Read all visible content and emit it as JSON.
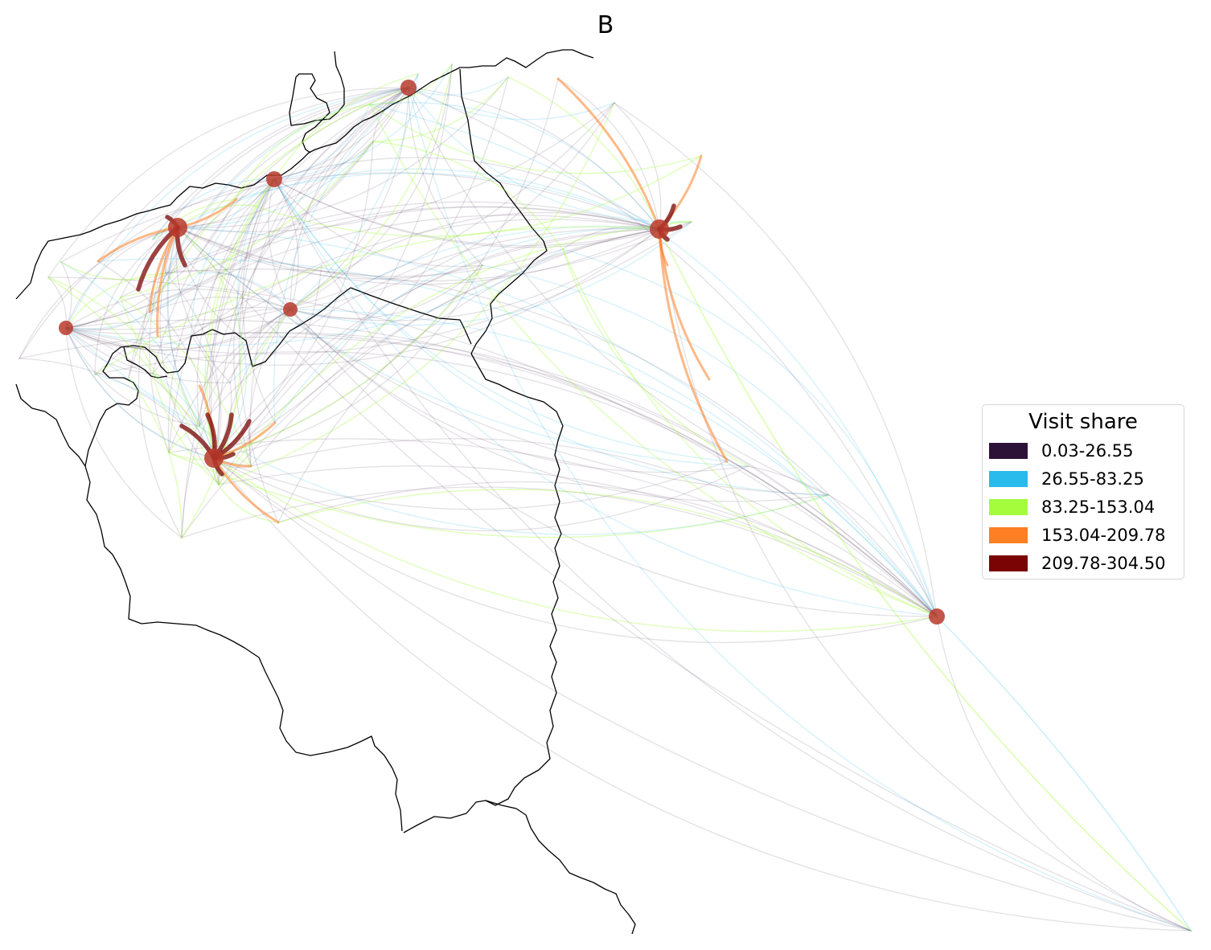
{
  "title": "B",
  "legend": {
    "title": "Visit share",
    "items": [
      {
        "label": "0.03-26.55",
        "color": "#2d1238"
      },
      {
        "label": "26.55-83.25",
        "color": "#29bbec"
      },
      {
        "label": "83.25-153.04",
        "color": "#a4fc3c"
      },
      {
        "label": "153.04-209.78",
        "color": "#fe7f24"
      },
      {
        "label": "209.78-304.50",
        "color": "#7a0403"
      }
    ]
  },
  "colors": {
    "border": "#000000",
    "hub": "#b73a2c",
    "background": "#ffffff"
  }
}
